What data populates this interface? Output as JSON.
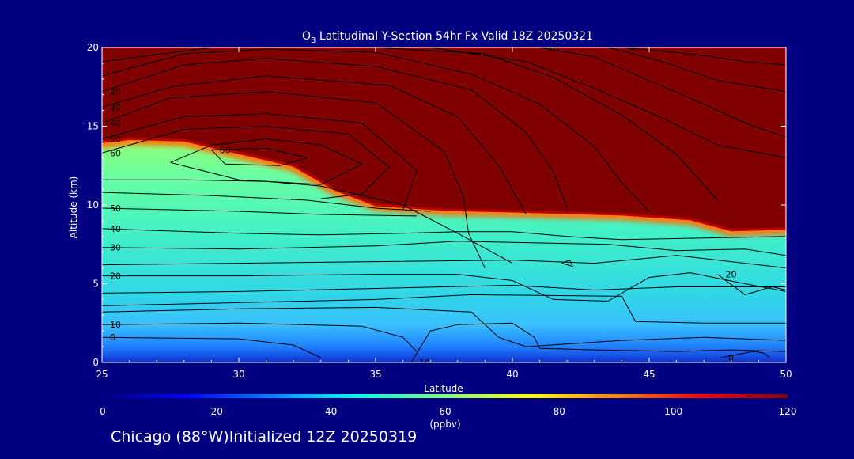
{
  "colors": {
    "background": "#000080",
    "axes": "#ffffff",
    "contour": "#000000",
    "saturated": "#800000"
  },
  "chart_data": {
    "type": "heatmap",
    "title": {
      "species": "O",
      "species_subscript": "3",
      "rest": " Latitudinal Y-Section 54hr  Fx Valid 18Z 20250321"
    },
    "xlabel": "Latitude",
    "ylabel": "Altitude (km)",
    "xlim": [
      25,
      50
    ],
    "ylim": [
      0,
      20
    ],
    "x_ticks": [
      25,
      30,
      35,
      40,
      45,
      50
    ],
    "y_ticks": [
      0,
      5,
      10,
      15,
      20
    ],
    "colorbar": {
      "min": 0,
      "max": 120,
      "ticks": [
        0,
        20,
        40,
        60,
        80,
        100,
        120
      ],
      "unit_label": "(ppbv)",
      "colormap": "rainbow"
    },
    "tropopause_km": [
      {
        "lat": 25.0,
        "alt": 14.0
      },
      {
        "lat": 26.0,
        "alt": 14.2
      },
      {
        "lat": 28.0,
        "alt": 14.1
      },
      {
        "lat": 30.0,
        "alt": 13.3
      },
      {
        "lat": 32.0,
        "alt": 12.5
      },
      {
        "lat": 33.5,
        "alt": 11.0
      },
      {
        "lat": 35.0,
        "alt": 10.0
      },
      {
        "lat": 37.5,
        "alt": 9.7
      },
      {
        "lat": 40.0,
        "alt": 9.6
      },
      {
        "lat": 44.0,
        "alt": 9.4
      },
      {
        "lat": 46.5,
        "alt": 9.1
      },
      {
        "lat": 48.0,
        "alt": 8.4
      },
      {
        "lat": 50.0,
        "alt": 8.5
      }
    ],
    "contours": [
      {
        "label": "0",
        "points": [
          [
            25,
            1.6
          ],
          [
            30,
            1.5
          ],
          [
            32,
            1.1
          ],
          [
            33,
            0.3
          ]
        ]
      },
      {
        "label": "10",
        "points": [
          [
            25,
            2.4
          ],
          [
            30,
            2.5
          ],
          [
            34.5,
            2.3
          ],
          [
            36,
            1.6
          ],
          [
            36.5,
            0.7
          ]
        ]
      },
      {
        "label": "10",
        "points": [
          [
            36.3,
            0
          ],
          [
            37,
            2.0
          ],
          [
            38,
            2.4
          ],
          [
            40,
            2.5
          ],
          [
            40.8,
            1.6
          ],
          [
            41,
            0.9
          ],
          [
            43,
            0.8
          ],
          [
            46,
            0.7
          ],
          [
            48,
            0.8
          ],
          [
            50,
            0.7
          ]
        ]
      },
      {
        "label": "",
        "points": [
          [
            25,
            3.2
          ],
          [
            30,
            3.4
          ],
          [
            35,
            3.5
          ],
          [
            38.5,
            3.2
          ],
          [
            39.5,
            1.6
          ],
          [
            40.5,
            1.0
          ],
          [
            44,
            1.4
          ],
          [
            47,
            1.6
          ],
          [
            50,
            1.4
          ]
        ]
      },
      {
        "label": "",
        "points": [
          [
            25,
            3.6
          ],
          [
            30,
            3.8
          ],
          [
            35,
            4.0
          ],
          [
            38.5,
            4.3
          ],
          [
            44,
            4.2
          ],
          [
            44.5,
            2.6
          ],
          [
            47,
            2.5
          ],
          [
            50,
            2.5
          ]
        ]
      },
      {
        "label": "",
        "points": [
          [
            25,
            4.4
          ],
          [
            30,
            4.5
          ],
          [
            35,
            4.7
          ],
          [
            40,
            4.9
          ],
          [
            43,
            4.6
          ],
          [
            46,
            4.8
          ],
          [
            50,
            4.8
          ]
        ]
      },
      {
        "label": "20",
        "points": [
          [
            25,
            5.5
          ],
          [
            30,
            5.5
          ],
          [
            35,
            5.6
          ],
          [
            38,
            5.6
          ],
          [
            40,
            5.2
          ],
          [
            41.5,
            4.0
          ],
          [
            43.5,
            3.9
          ],
          [
            45,
            5.4
          ],
          [
            46.5,
            5.7
          ],
          [
            48.5,
            5.0
          ],
          [
            50,
            4.5
          ]
        ]
      },
      {
        "label": "",
        "points": [
          [
            25,
            6.2
          ],
          [
            30,
            6.3
          ],
          [
            35,
            6.4
          ],
          [
            40,
            6.5
          ],
          [
            43,
            6.3
          ],
          [
            46,
            6.8
          ],
          [
            50,
            6.0
          ]
        ]
      },
      {
        "label": "30",
        "points": [
          [
            25,
            7.3
          ],
          [
            30,
            7.2
          ],
          [
            35,
            7.4
          ],
          [
            38,
            7.7
          ],
          [
            43.5,
            7.5
          ],
          [
            46,
            7.1
          ],
          [
            48.5,
            7.2
          ],
          [
            50,
            6.8
          ]
        ]
      },
      {
        "label": "40",
        "points": [
          [
            25,
            8.5
          ],
          [
            30,
            8.2
          ],
          [
            33,
            8.1
          ],
          [
            36,
            8.2
          ],
          [
            38,
            8.3
          ],
          [
            40,
            8.3
          ],
          [
            42,
            8.0
          ],
          [
            44,
            7.8
          ],
          [
            47,
            7.9
          ],
          [
            50,
            8.0
          ]
        ]
      },
      {
        "label": "50",
        "points": [
          [
            25,
            9.8
          ],
          [
            30,
            9.6
          ],
          [
            33,
            9.4
          ],
          [
            36.5,
            9.3
          ]
        ]
      },
      {
        "label": "",
        "points": [
          [
            25,
            10.8
          ],
          [
            29,
            10.6
          ],
          [
            32.5,
            10.3
          ],
          [
            35,
            9.8
          ],
          [
            37,
            9.6
          ]
        ]
      },
      {
        "label": "",
        "points": [
          [
            25,
            11.6
          ],
          [
            28,
            11.6
          ],
          [
            31,
            11.5
          ],
          [
            33,
            11.2
          ],
          [
            36,
            10.0
          ],
          [
            38,
            8.2
          ],
          [
            40,
            6.3
          ]
        ]
      },
      {
        "label": "60",
        "points": [
          [
            29,
            13.5
          ],
          [
            31,
            13.6
          ],
          [
            32.5,
            13.0
          ],
          [
            31.5,
            12.5
          ],
          [
            29.5,
            12.6
          ],
          [
            29,
            13.5
          ]
        ]
      },
      {
        "label": "",
        "points": [
          [
            27.5,
            12.7
          ],
          [
            29,
            13.8
          ],
          [
            31,
            14.2
          ],
          [
            33,
            13.8
          ],
          [
            34.5,
            12.6
          ],
          [
            33,
            11.3
          ],
          [
            30,
            11.6
          ],
          [
            27.5,
            12.7
          ]
        ]
      },
      {
        "label": "60",
        "points": [
          [
            25,
            13.3
          ],
          [
            28,
            14.8
          ],
          [
            31,
            15.0
          ],
          [
            34,
            14.5
          ],
          [
            35.5,
            12.4
          ],
          [
            34.5,
            10.7
          ],
          [
            33,
            10.4
          ]
        ]
      },
      {
        "label": "50",
        "points": [
          [
            25,
            14.2
          ],
          [
            28,
            15.6
          ],
          [
            31,
            15.8
          ],
          [
            34.5,
            15.2
          ],
          [
            36.5,
            12.2
          ],
          [
            36,
            9.7
          ]
        ]
      },
      {
        "label": "40",
        "points": [
          [
            25,
            15.2
          ],
          [
            27.5,
            16.8
          ],
          [
            31,
            17.2
          ],
          [
            35,
            16.5
          ],
          [
            37.5,
            13.4
          ],
          [
            38.2,
            10.6
          ],
          [
            38.4,
            8.2
          ],
          [
            39,
            6.0
          ]
        ]
      },
      {
        "label": "30",
        "points": [
          [
            25,
            16.2
          ],
          [
            27.5,
            17.5
          ],
          [
            31,
            18.2
          ],
          [
            35.5,
            17.6
          ],
          [
            38,
            15.6
          ],
          [
            39.5,
            12.5
          ],
          [
            40.5,
            9.4
          ]
        ]
      },
      {
        "label": "20",
        "points": [
          [
            25,
            17.2
          ],
          [
            28,
            18.9
          ],
          [
            31,
            19.3
          ],
          [
            35,
            18.8
          ],
          [
            38.5,
            17.3
          ],
          [
            40.5,
            14.6
          ],
          [
            41.5,
            12.1
          ],
          [
            42,
            9.8
          ]
        ]
      },
      {
        "label": "",
        "points": [
          [
            25,
            18.2
          ],
          [
            28,
            19.6
          ],
          [
            31,
            19.9
          ],
          [
            35,
            19.7
          ],
          [
            38.5,
            18.3
          ],
          [
            41,
            16.4
          ],
          [
            43,
            13.7
          ],
          [
            44,
            11.4
          ],
          [
            45,
            9.6
          ]
        ]
      },
      {
        "label": "",
        "points": [
          [
            25,
            19.1
          ],
          [
            29,
            20
          ],
          [
            35,
            20
          ],
          [
            39,
            19.6
          ],
          [
            41.5,
            18.1
          ],
          [
            44,
            15.7
          ],
          [
            46,
            13.2
          ],
          [
            47.5,
            10.3
          ]
        ]
      },
      {
        "label": "",
        "points": [
          [
            37,
            20
          ],
          [
            40.5,
            19.1
          ],
          [
            43,
            17.4
          ],
          [
            45.5,
            15.5
          ],
          [
            47.5,
            13.8
          ],
          [
            50,
            13.0
          ]
        ]
      },
      {
        "label": "20",
        "points": [
          [
            41,
            20
          ],
          [
            43,
            19.4
          ],
          [
            45,
            17.9
          ],
          [
            47,
            16.4
          ],
          [
            48.5,
            15.2
          ],
          [
            50,
            14.3
          ]
        ]
      },
      {
        "label": "",
        "points": [
          [
            43.5,
            20
          ],
          [
            45.5,
            19.1
          ],
          [
            47.5,
            17.9
          ],
          [
            50,
            17.2
          ]
        ]
      },
      {
        "label": "0",
        "points": [
          [
            44,
            20
          ],
          [
            46.5,
            19.6
          ],
          [
            48.5,
            19.1
          ],
          [
            50,
            18.9
          ]
        ]
      },
      {
        "label": "20",
        "points": [
          [
            47.5,
            5.6
          ],
          [
            48.5,
            4.3
          ],
          [
            49.5,
            4.8
          ],
          [
            50,
            4.6
          ]
        ]
      },
      {
        "label": "",
        "points": [
          [
            41.8,
            6.3
          ],
          [
            42.1,
            6.5
          ],
          [
            42.2,
            6.1
          ],
          [
            41.8,
            6.3
          ]
        ]
      },
      {
        "label": "0",
        "points": [
          [
            47.6,
            0.3
          ],
          [
            48.8,
            0.7
          ],
          [
            49.2,
            0.6
          ],
          [
            49.4,
            0.3
          ]
        ]
      }
    ]
  },
  "footer": {
    "caption": "Chicago (88°W)Initialized 12Z 20250319"
  }
}
